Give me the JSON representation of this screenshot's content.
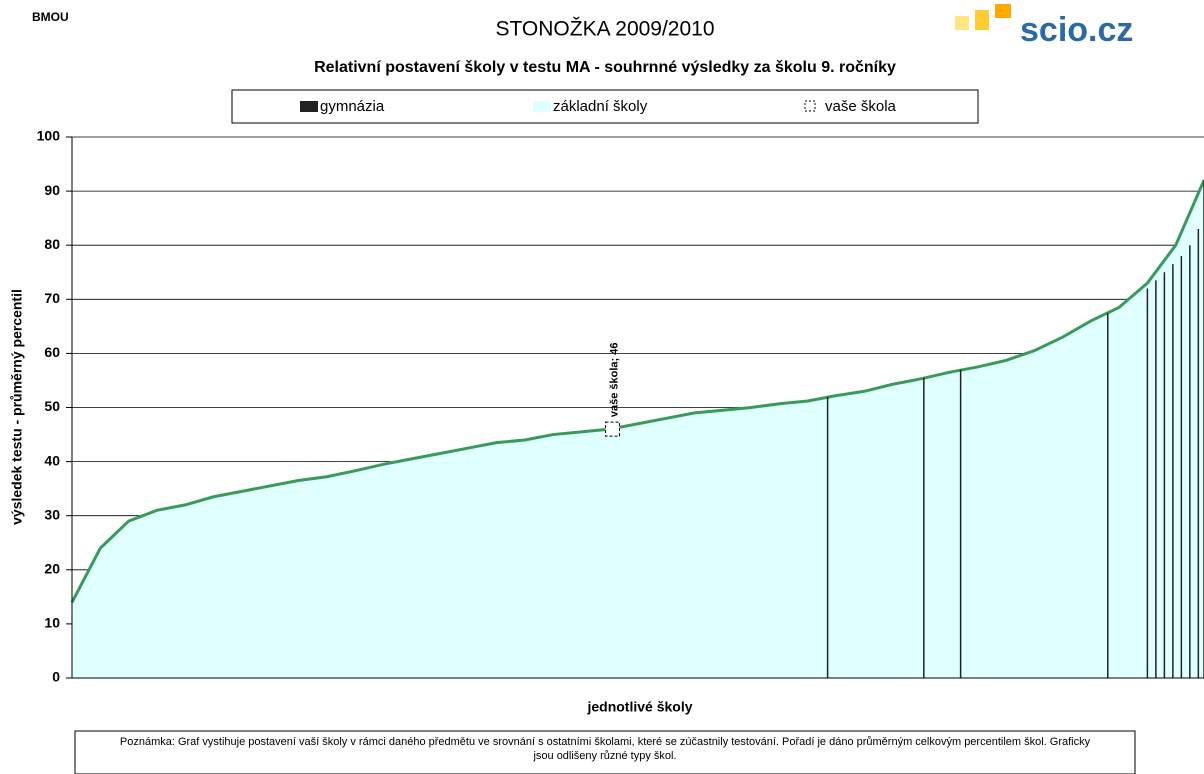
{
  "header": {
    "code": "BMOU",
    "title": "STONOŽKA 2009/2010",
    "logo": "scio.cz"
  },
  "chart_data": {
    "type": "area",
    "title": "Relativní postavení školy v testu MA - souhrnné výsledky za školu 9. ročníky",
    "y_label": "výsledek testu - průměrný percentil",
    "x_label": "jednotlivé školy",
    "xlim": [
      0,
      40
    ],
    "ylim": [
      0,
      100
    ],
    "yticks": [
      0,
      10,
      20,
      30,
      40,
      50,
      60,
      70,
      80,
      90,
      100
    ],
    "grid": true,
    "series": [
      {
        "name": "gymnázia",
        "color": "#222222",
        "kind": "bars",
        "x": [
          26.7,
          30.1,
          31.4,
          36.6,
          38.0,
          38.3,
          38.6,
          38.9,
          39.2,
          39.5,
          39.8,
          40
        ],
        "values": [
          52,
          55.5,
          57,
          67.5,
          72,
          73.5,
          75,
          76.5,
          78,
          80,
          83,
          92
        ]
      },
      {
        "name": "základní školy",
        "color": "#e0ffff",
        "line_color": "#3a9a5c",
        "kind": "area",
        "x": [
          0,
          1,
          2,
          3,
          4,
          5,
          6,
          7,
          8,
          9,
          10,
          11,
          12,
          13,
          14,
          15,
          16,
          17,
          18,
          19,
          20,
          21,
          22,
          23,
          24,
          25,
          26,
          27,
          28,
          29,
          30,
          31,
          32,
          33,
          34,
          35,
          36,
          37,
          38,
          39,
          40
        ],
        "values": [
          14,
          24,
          29,
          31,
          32,
          33.5,
          34.5,
          35.5,
          36.5,
          37.2,
          38.3,
          39.5,
          40.5,
          41.5,
          42.5,
          43.5,
          44,
          45,
          45.5,
          46,
          47,
          48,
          49,
          49.5,
          50,
          50.7,
          51.2,
          52.2,
          53,
          54.3,
          55.3,
          56.5,
          57.5,
          58.7,
          60.5,
          63,
          66,
          68.5,
          73,
          80,
          92
        ]
      },
      {
        "name": "vaše škola",
        "color": "#000000",
        "kind": "point",
        "x": [
          19.1
        ],
        "values": [
          46
        ],
        "value_labels": [
          "vaše škola; 46"
        ]
      }
    ],
    "note": "Poznámka: Graf vystihuje postavení vaší školy v rámci daného předmětu ve srovnání s ostatními školami, které se zúčastnily testování. Pořadí je dáno průměrným celkovým percentilem škol. Graficky jsou odlišeny různé typy škol."
  }
}
